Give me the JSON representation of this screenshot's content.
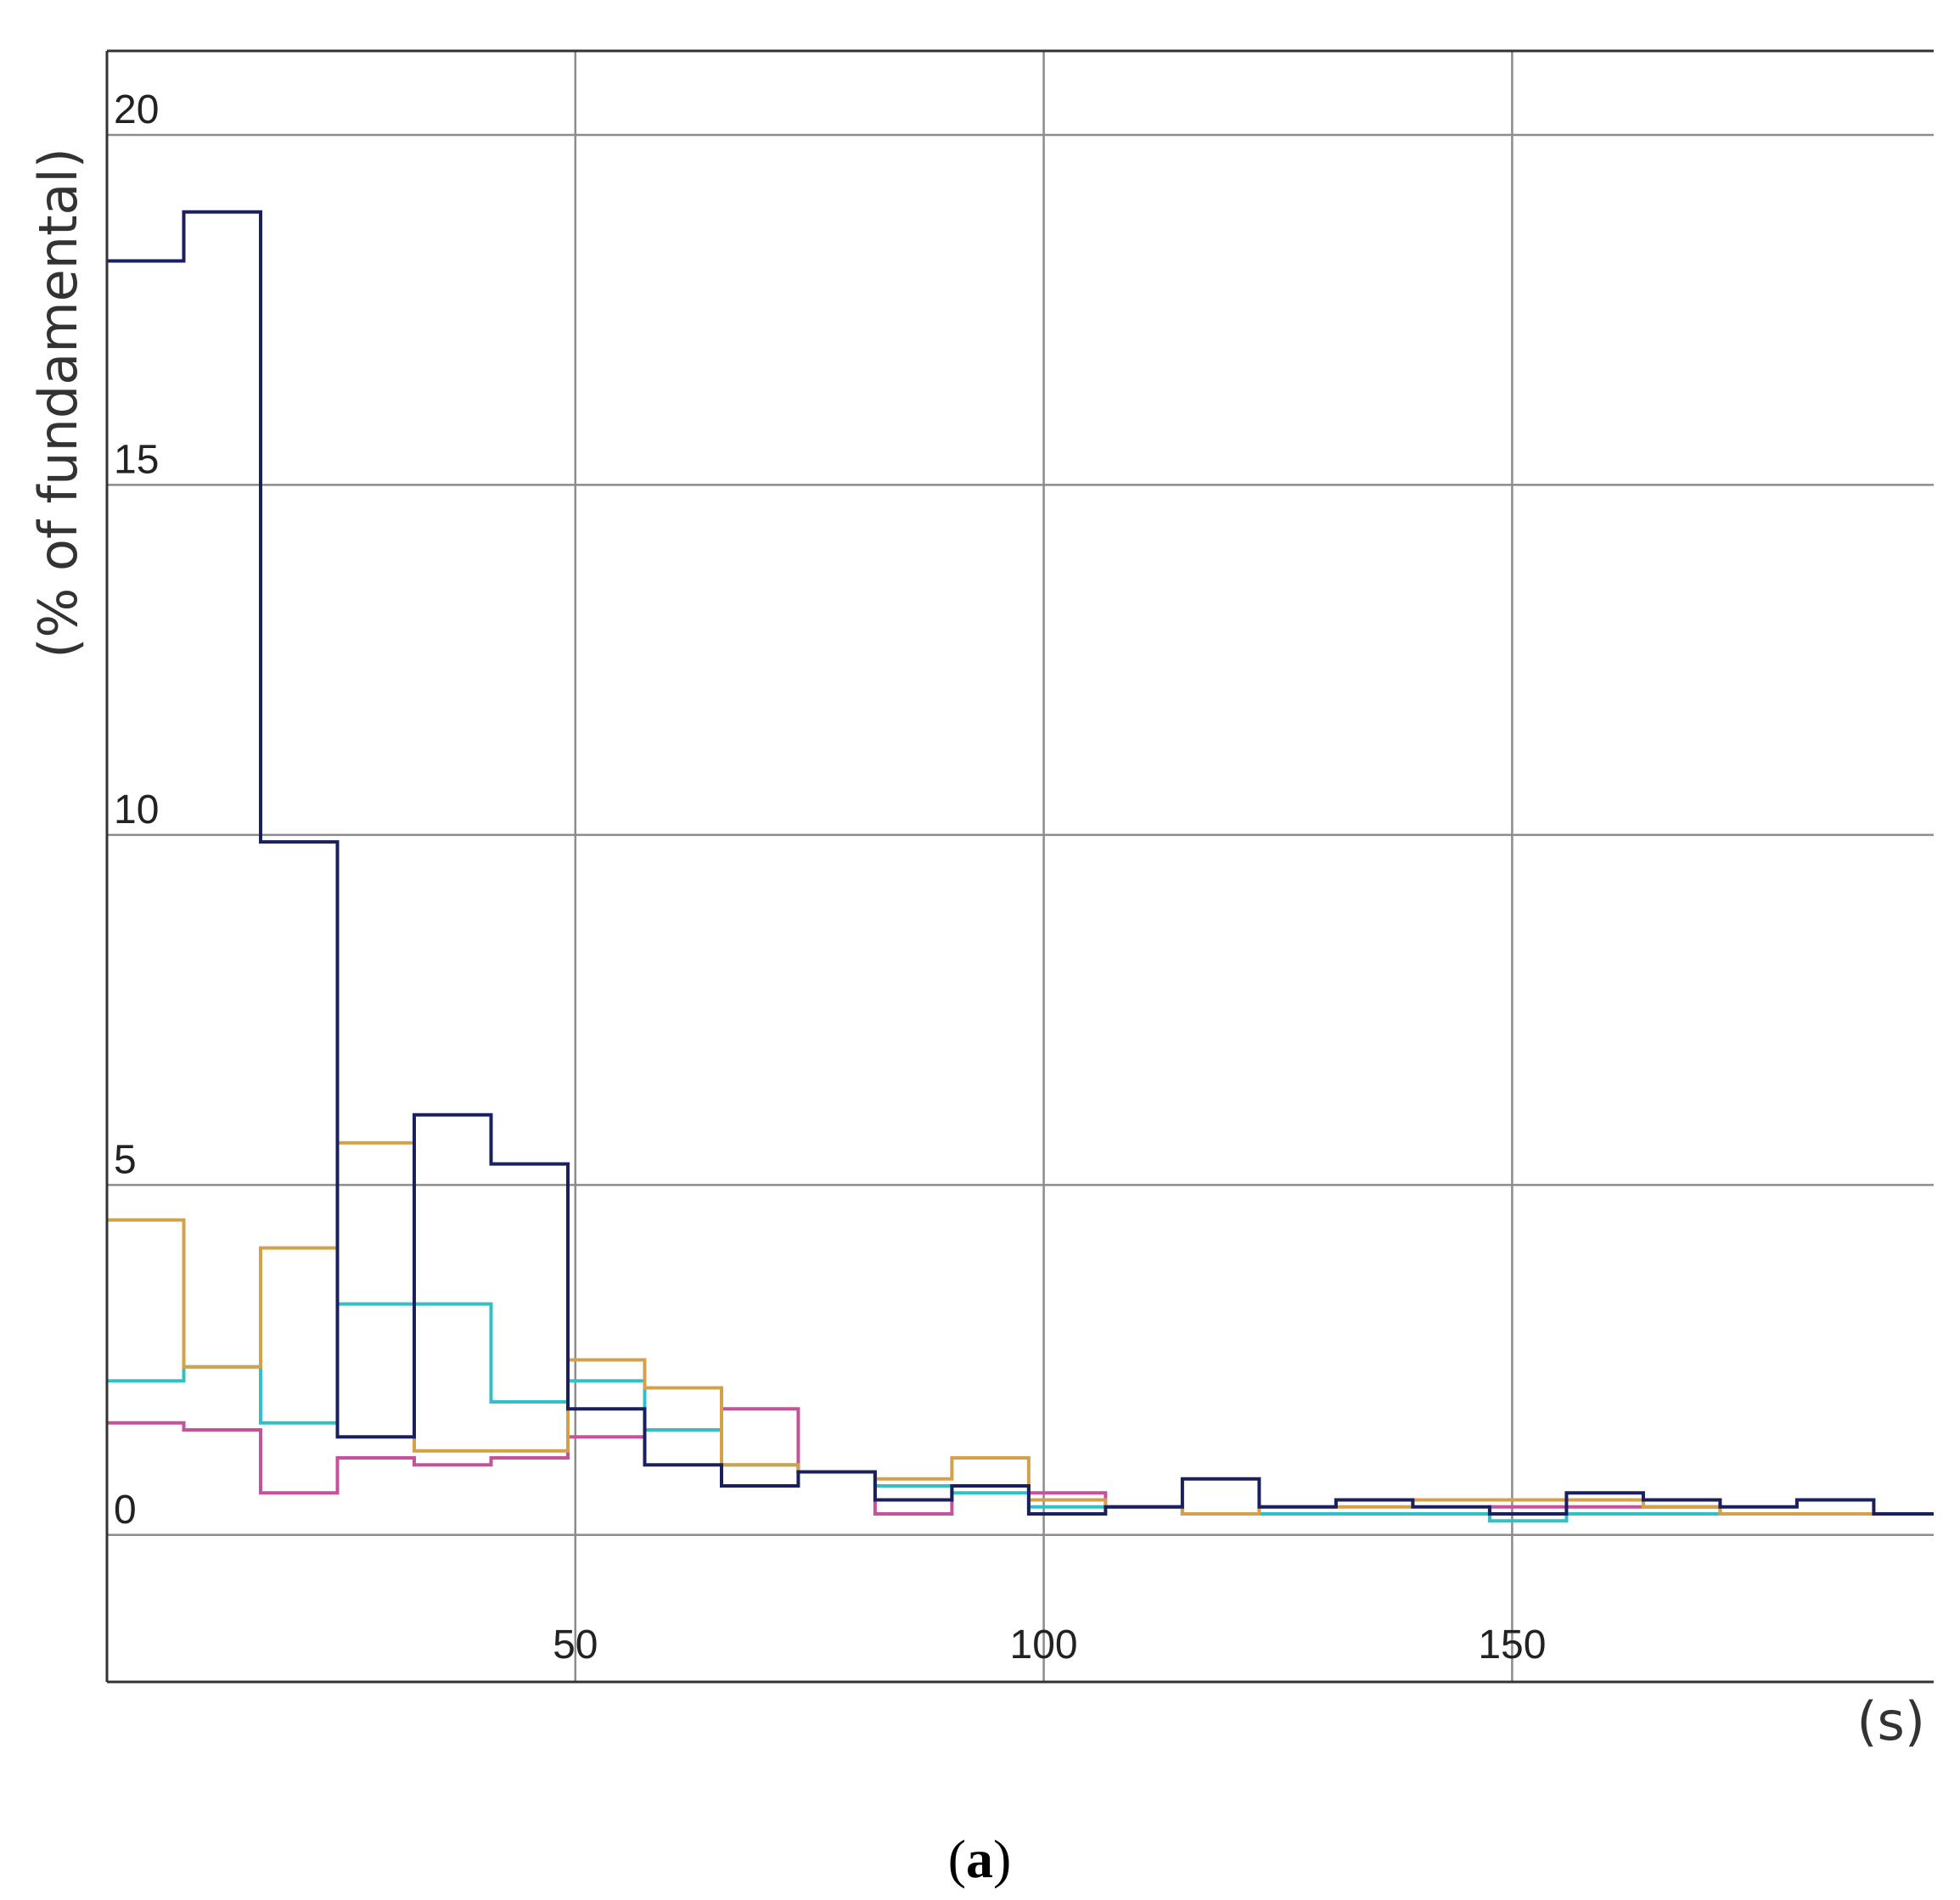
{
  "chart_data": {
    "type": "line",
    "step": true,
    "xlabel": "(s)",
    "ylabel": "(% of fundamental)",
    "caption_open": "(",
    "caption_letter": "a",
    "caption_close": ")",
    "xlim": [
      0,
      195
    ],
    "ylim": [
      -2.1,
      21.2
    ],
    "xticks": [
      50,
      100,
      150
    ],
    "yticks": [
      0,
      5,
      10,
      15,
      20
    ],
    "grid": true,
    "bin_edges": [
      0,
      8.2,
      16.4,
      24.6,
      32.8,
      41,
      49.2,
      57.4,
      65.6,
      73.8,
      82,
      90.2,
      98.4,
      106.6,
      114.8,
      123,
      131.2,
      139.4,
      147.6,
      155.8,
      164,
      172.2,
      180.4,
      188.6,
      195
    ],
    "series": [
      {
        "color": "#1a1f5e",
        "values": [
          18.2,
          18.9,
          9.9,
          1.4,
          6.0,
          5.3,
          1.8,
          1.0,
          0.7,
          0.9,
          0.5,
          0.7,
          0.3,
          0.4,
          0.8,
          0.4,
          0.5,
          0.4,
          0.3,
          0.6,
          0.5,
          0.4,
          0.5,
          0.3
        ]
      },
      {
        "color": "#d4a04a",
        "values": [
          4.5,
          2.4,
          4.1,
          5.6,
          1.2,
          1.2,
          2.5,
          2.1,
          1.0,
          0.9,
          0.8,
          1.1,
          0.5,
          0.4,
          0.3,
          0.4,
          0.4,
          0.5,
          0.5,
          0.5,
          0.4,
          0.3,
          0.3,
          0.3
        ]
      },
      {
        "color": "#33bfc8",
        "values": [
          2.2,
          2.4,
          1.6,
          3.3,
          3.3,
          1.9,
          2.2,
          1.5,
          1.0,
          0.9,
          0.7,
          0.6,
          0.4,
          0.4,
          0.3,
          0.3,
          0.3,
          0.3,
          0.2,
          0.3,
          0.3,
          0.3,
          0.3,
          0.3
        ]
      },
      {
        "color": "#c4529c",
        "values": [
          1.6,
          1.5,
          0.6,
          1.1,
          1.0,
          1.1,
          1.4,
          2.1,
          1.8,
          0.9,
          0.3,
          0.7,
          0.6,
          0.4,
          0.3,
          0.3,
          0.3,
          0.3,
          0.4,
          0.4,
          0.4,
          0.3,
          0.3,
          0.3
        ]
      }
    ]
  }
}
